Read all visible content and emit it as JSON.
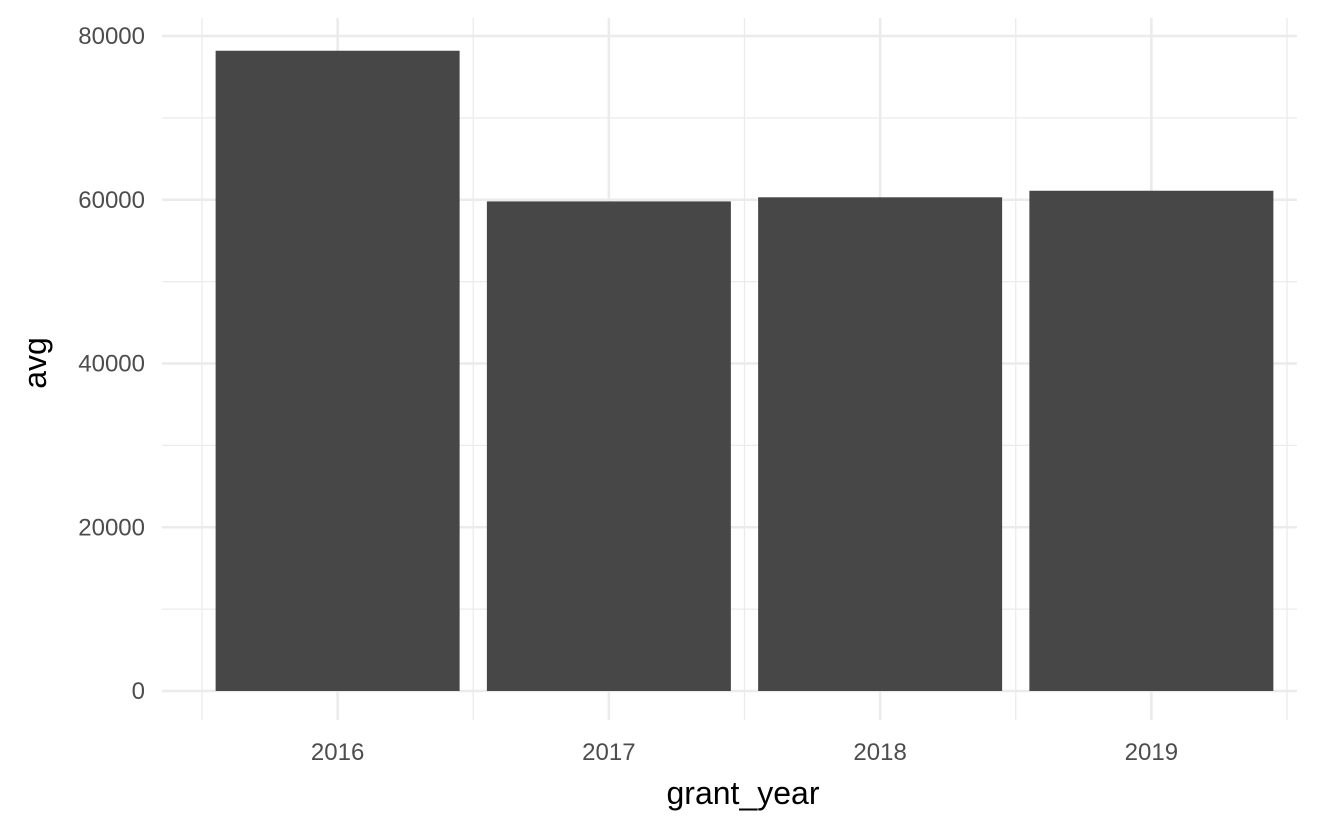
{
  "chart_data": {
    "type": "bar",
    "title": "",
    "xlabel": "grant_year",
    "ylabel": "avg",
    "categories": [
      "2016",
      "2017",
      "2018",
      "2019"
    ],
    "values": [
      78200,
      59800,
      60300,
      61100
    ],
    "ylim": [
      0,
      80000
    ],
    "y_ticks": [
      0,
      20000,
      40000,
      60000,
      80000
    ],
    "y_tick_labels": [
      "0",
      "20000",
      "40000",
      "60000",
      "80000"
    ],
    "grid": true,
    "legend": "none",
    "bar_color": "#474747",
    "grid_color": "#ebebeb"
  }
}
